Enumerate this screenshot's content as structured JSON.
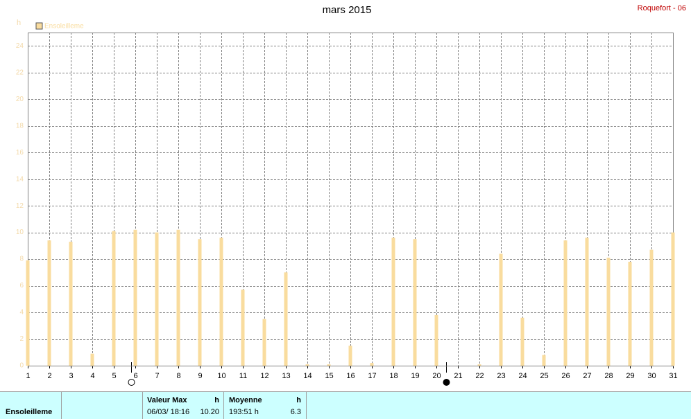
{
  "chart_data": {
    "type": "bar",
    "title": "mars 2015",
    "annotation": "Roquefort - 06",
    "y_unit": "h",
    "series": [
      {
        "name": "Ensoleilleme",
        "color": "#f9dc9e",
        "values": [
          7.9,
          9.4,
          9.3,
          0.9,
          10.1,
          10.2,
          10.0,
          10.2,
          9.5,
          9.6,
          5.7,
          3.5,
          7.0,
          0.1,
          0.1,
          1.5,
          0.2,
          9.6,
          9.5,
          3.8,
          0,
          0.1,
          8.4,
          3.6,
          0.8,
          9.4,
          9.6,
          8.1,
          7.8,
          8.7,
          10.0
        ]
      }
    ],
    "x": [
      1,
      2,
      3,
      4,
      5,
      6,
      7,
      8,
      9,
      10,
      11,
      12,
      13,
      14,
      15,
      16,
      17,
      18,
      19,
      20,
      21,
      22,
      23,
      24,
      25,
      26,
      27,
      28,
      29,
      30,
      31
    ],
    "xlim": [
      1,
      31
    ],
    "xticks": [
      1,
      2,
      3,
      4,
      5,
      6,
      7,
      8,
      9,
      10,
      11,
      12,
      13,
      14,
      15,
      16,
      17,
      18,
      19,
      20,
      21,
      22,
      23,
      24,
      25,
      26,
      27,
      28,
      29,
      30,
      31
    ],
    "ylim": [
      0,
      25
    ],
    "yticks": [
      0,
      2,
      4,
      6,
      8,
      10,
      12,
      14,
      16,
      18,
      20,
      22,
      24
    ],
    "grid": true,
    "legend": "top-left"
  },
  "summary": {
    "row_label": "Ensoleilleme",
    "max": {
      "title": "Valeur Max",
      "unit": "h",
      "date": "06/03/ 18:16",
      "value": "10.20"
    },
    "mean": {
      "title": "Moyenne",
      "unit": "h",
      "total": "193:51 h",
      "value": "6.3"
    }
  }
}
